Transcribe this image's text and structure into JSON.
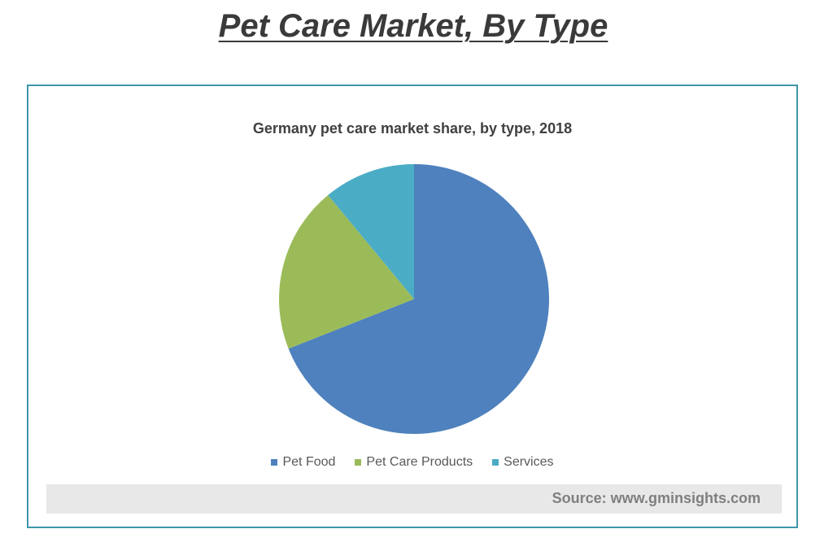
{
  "header": {
    "title": "Pet Care Market, By Type"
  },
  "chart_data": {
    "type": "pie",
    "title": "Germany pet care market share, by type, 2018",
    "categories": [
      "Pet Food",
      "Pet Care Products",
      "Services"
    ],
    "values": [
      69,
      20,
      11
    ],
    "colors": [
      "#4e81bd",
      "#9bbb59",
      "#4bacc6"
    ],
    "legend_position": "bottom",
    "start_angle_deg": 0,
    "direction": "clockwise"
  },
  "footer": {
    "source": "Source: www.gminsights.com"
  }
}
